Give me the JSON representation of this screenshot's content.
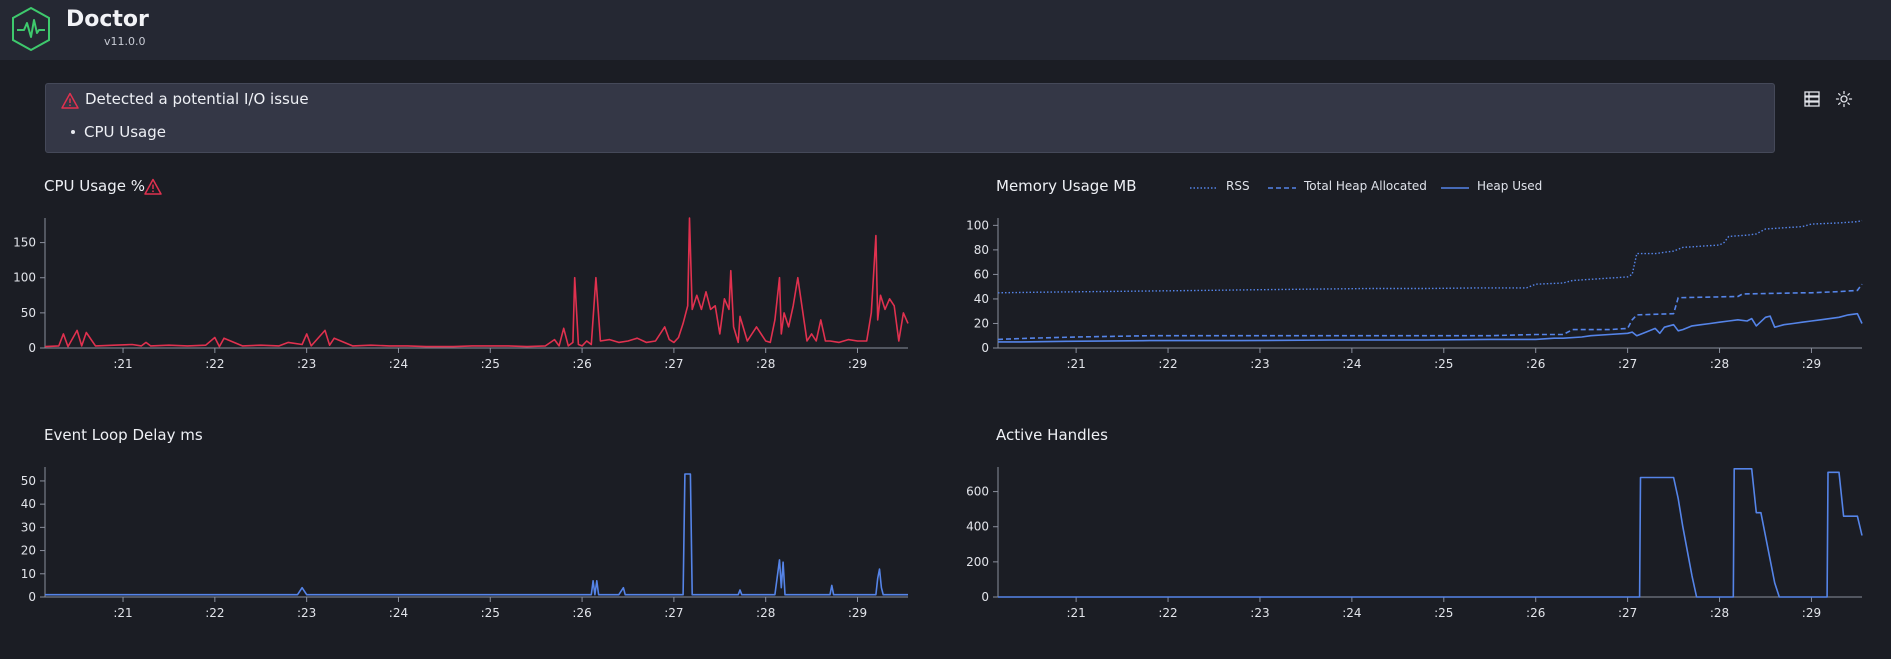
{
  "app": {
    "name": "Doctor",
    "version": "v11.0.0"
  },
  "alert": {
    "title": "Detected a potential I/O issue",
    "items": [
      "CPU Usage"
    ]
  },
  "colors": {
    "cpu": "#e0314f",
    "series": "#5584e8",
    "warn": "#e0314f",
    "logo": "#3ec96d",
    "axis": "#8a8f9c"
  },
  "panels": {
    "cpu": {
      "title": "CPU Usage %"
    },
    "memory": {
      "title": "Memory Usage MB"
    },
    "delay": {
      "title": "Event Loop Delay ms"
    },
    "handles": {
      "title": "Active Handles"
    }
  },
  "chart_data": [
    {
      "id": "cpu",
      "type": "line",
      "title": "CPU Usage %",
      "xlim": [
        20.15,
        29.55
      ],
      "ylim": [
        0,
        185
      ],
      "yticks": [
        0,
        50,
        100,
        150
      ],
      "xticks": [
        21,
        22,
        23,
        24,
        25,
        26,
        27,
        28,
        29
      ],
      "xtick_labels": [
        ":21",
        ":22",
        ":23",
        ":24",
        ":25",
        ":26",
        ":27",
        ":28",
        ":29"
      ],
      "series": [
        {
          "name": "CPU Usage %",
          "style": "solid",
          "color": "#e0314f",
          "x": [
            20.15,
            20.3,
            20.35,
            20.4,
            20.5,
            20.55,
            20.6,
            20.7,
            20.9,
            21.1,
            21.2,
            21.25,
            21.3,
            21.5,
            21.7,
            21.9,
            22.0,
            22.05,
            22.1,
            22.3,
            22.5,
            22.7,
            22.8,
            22.95,
            23.0,
            23.05,
            23.2,
            23.25,
            23.3,
            23.5,
            23.7,
            23.9,
            24.1,
            24.3,
            24.6,
            24.8,
            25.0,
            25.2,
            25.4,
            25.6,
            25.7,
            25.75,
            25.8,
            25.85,
            25.9,
            25.92,
            25.96,
            26.0,
            26.05,
            26.1,
            26.15,
            26.2,
            26.3,
            26.4,
            26.5,
            26.6,
            26.7,
            26.8,
            26.9,
            26.95,
            27.0,
            27.05,
            27.1,
            27.15,
            27.17,
            27.2,
            27.25,
            27.3,
            27.35,
            27.4,
            27.45,
            27.5,
            27.55,
            27.6,
            27.62,
            27.65,
            27.7,
            27.72,
            27.8,
            27.9,
            28.0,
            28.05,
            28.1,
            28.15,
            28.17,
            28.2,
            28.25,
            28.3,
            28.35,
            28.4,
            28.45,
            28.5,
            28.55,
            28.6,
            28.65,
            28.7,
            28.8,
            28.9,
            29.0,
            29.1,
            29.15,
            29.2,
            29.22,
            29.25,
            29.3,
            29.35,
            29.4,
            29.45,
            29.5,
            29.55
          ],
          "y": [
            2,
            3,
            20,
            2,
            25,
            3,
            22,
            3,
            4,
            5,
            3,
            8,
            3,
            4,
            3,
            4,
            15,
            2,
            14,
            3,
            4,
            3,
            8,
            5,
            20,
            3,
            25,
            4,
            14,
            3,
            4,
            3,
            3,
            2,
            2,
            3,
            3,
            3,
            2,
            3,
            12,
            3,
            28,
            3,
            8,
            100,
            5,
            3,
            10,
            5,
            100,
            10,
            12,
            8,
            10,
            14,
            8,
            10,
            30,
            12,
            8,
            15,
            35,
            60,
            185,
            55,
            75,
            55,
            80,
            55,
            60,
            20,
            70,
            55,
            110,
            30,
            8,
            45,
            10,
            30,
            10,
            8,
            40,
            100,
            20,
            50,
            30,
            60,
            100,
            55,
            10,
            20,
            10,
            40,
            10,
            10,
            8,
            12,
            10,
            10,
            50,
            160,
            40,
            75,
            55,
            70,
            60,
            10,
            50,
            35
          ]
        }
      ]
    },
    {
      "id": "memory",
      "type": "line",
      "title": "Memory Usage MB",
      "xlim": [
        20.15,
        29.55
      ],
      "ylim": [
        0,
        106
      ],
      "yticks": [
        0,
        20,
        40,
        60,
        80,
        100
      ],
      "xticks": [
        21,
        22,
        23,
        24,
        25,
        26,
        27,
        28,
        29
      ],
      "xtick_labels": [
        ":21",
        ":22",
        ":23",
        ":24",
        ":25",
        ":26",
        ":27",
        ":28",
        ":29"
      ],
      "legend_position": "top",
      "series": [
        {
          "name": "RSS",
          "style": "dotted",
          "color": "#5584e8",
          "x": [
            20.15,
            20.6,
            21.2,
            21.8,
            22.4,
            23.0,
            23.6,
            24.2,
            24.8,
            25.4,
            25.9,
            26.0,
            26.3,
            26.4,
            26.6,
            26.8,
            27.0,
            27.05,
            27.1,
            27.3,
            27.4,
            27.5,
            27.6,
            27.8,
            28.0,
            28.05,
            28.1,
            28.3,
            28.4,
            28.5,
            28.9,
            29.0,
            29.3,
            29.5,
            29.55
          ],
          "y": [
            45,
            45.5,
            46,
            46.5,
            47,
            47.5,
            48,
            48.5,
            48.5,
            49,
            49,
            52,
            53,
            55,
            56,
            57,
            58,
            60,
            77,
            77,
            78,
            79,
            82,
            83,
            84,
            86,
            91,
            92,
            93,
            97,
            99,
            101,
            102,
            103,
            104
          ]
        },
        {
          "name": "Total Heap Allocated",
          "style": "dashed",
          "color": "#5584e8",
          "x": [
            20.15,
            20.5,
            21.0,
            21.8,
            22.5,
            23.5,
            24.5,
            25.5,
            26.0,
            26.3,
            26.4,
            26.5,
            26.8,
            27.0,
            27.05,
            27.1,
            27.5,
            27.55,
            28.2,
            28.25,
            28.9,
            29.0,
            29.3,
            29.5,
            29.55
          ],
          "y": [
            7,
            8,
            9,
            10,
            10,
            10,
            10,
            10,
            11,
            11,
            15,
            15,
            15,
            16,
            23,
            27,
            28,
            41,
            42,
            44,
            45,
            45,
            46,
            47,
            52
          ]
        },
        {
          "name": "Heap Used",
          "style": "solid",
          "color": "#5584e8",
          "x": [
            20.15,
            20.4,
            20.9,
            21.8,
            22.8,
            23.8,
            24.8,
            25.5,
            26.0,
            26.2,
            26.3,
            26.5,
            26.6,
            26.8,
            27.0,
            27.05,
            27.1,
            27.2,
            27.3,
            27.35,
            27.4,
            27.5,
            27.55,
            27.6,
            27.7,
            27.8,
            27.9,
            28.0,
            28.1,
            28.2,
            28.3,
            28.35,
            28.4,
            28.5,
            28.55,
            28.6,
            28.7,
            28.8,
            28.9,
            29.0,
            29.1,
            29.2,
            29.3,
            29.4,
            29.5,
            29.55
          ],
          "y": [
            5,
            5,
            5.5,
            6,
            6,
            6.5,
            6.5,
            7,
            7,
            8,
            8,
            9,
            10,
            11,
            12,
            13,
            10,
            13,
            16,
            12,
            17,
            19,
            14,
            15,
            18,
            19,
            20,
            21,
            22,
            23,
            22,
            24,
            18,
            25,
            26,
            17,
            19,
            20,
            21,
            22,
            23,
            24,
            25,
            27,
            28,
            20
          ]
        }
      ]
    },
    {
      "id": "delay",
      "type": "line",
      "title": "Event Loop Delay ms",
      "xlim": [
        20.15,
        29.55
      ],
      "ylim": [
        0,
        56
      ],
      "yticks": [
        0,
        10,
        20,
        30,
        40,
        50
      ],
      "xticks": [
        21,
        22,
        23,
        24,
        25,
        26,
        27,
        28,
        29
      ],
      "xtick_labels": [
        ":21",
        ":22",
        ":23",
        ":24",
        ":25",
        ":26",
        ":27",
        ":28",
        ":29"
      ],
      "series": [
        {
          "name": "Event Loop Delay ms",
          "style": "solid",
          "color": "#5584e8",
          "x": [
            20.15,
            21.0,
            22.0,
            22.9,
            22.95,
            23.0,
            23.1,
            23.9,
            24.9,
            25.8,
            25.9,
            26.0,
            26.1,
            26.12,
            26.14,
            26.16,
            26.18,
            26.2,
            26.25,
            26.27,
            26.3,
            26.4,
            26.45,
            26.47,
            26.5,
            26.7,
            26.9,
            27.1,
            27.12,
            27.14,
            27.18,
            27.2,
            27.3,
            27.5,
            27.7,
            27.72,
            27.74,
            27.76,
            27.8,
            28.1,
            28.15,
            28.17,
            28.19,
            28.21,
            28.23,
            28.25,
            28.5,
            28.7,
            28.72,
            28.74,
            28.76,
            28.8,
            29.0,
            29.2,
            29.22,
            29.24,
            29.26,
            29.28,
            29.3,
            29.5,
            29.55
          ],
          "y": [
            1,
            1,
            1,
            1,
            4,
            1,
            1,
            1,
            1,
            1,
            1,
            1,
            1,
            7,
            1,
            7,
            1,
            1,
            1,
            1,
            1,
            1,
            4,
            1,
            1,
            1,
            1,
            1,
            53,
            53,
            53,
            1,
            1,
            1,
            1,
            3,
            1,
            1,
            1,
            1,
            16,
            4,
            15,
            1,
            1,
            1,
            1,
            1,
            5,
            1,
            1,
            1,
            1,
            1,
            8,
            12,
            4,
            1,
            1,
            1,
            1
          ]
        }
      ]
    },
    {
      "id": "handles",
      "type": "line",
      "title": "Active Handles",
      "xlim": [
        20.15,
        29.55
      ],
      "ylim": [
        0,
        740
      ],
      "yticks": [
        0,
        200,
        400,
        600
      ],
      "xticks": [
        21,
        22,
        23,
        24,
        25,
        26,
        27,
        28,
        29
      ],
      "xtick_labels": [
        ":21",
        ":22",
        ":23",
        ":24",
        ":25",
        ":26",
        ":27",
        ":28",
        ":29"
      ],
      "series": [
        {
          "name": "Active Handles",
          "style": "solid",
          "color": "#5584e8",
          "x": [
            20.15,
            27.13,
            27.14,
            27.5,
            27.55,
            27.6,
            27.65,
            27.7,
            27.75,
            27.8,
            28.15,
            28.16,
            28.35,
            28.4,
            28.45,
            28.6,
            28.65,
            29.17,
            29.18,
            29.3,
            29.35,
            29.5,
            29.55
          ],
          "y": [
            0,
            0,
            680,
            680,
            560,
            400,
            260,
            120,
            0,
            0,
            0,
            730,
            730,
            480,
            480,
            80,
            0,
            0,
            710,
            710,
            460,
            460,
            350
          ]
        }
      ]
    }
  ]
}
